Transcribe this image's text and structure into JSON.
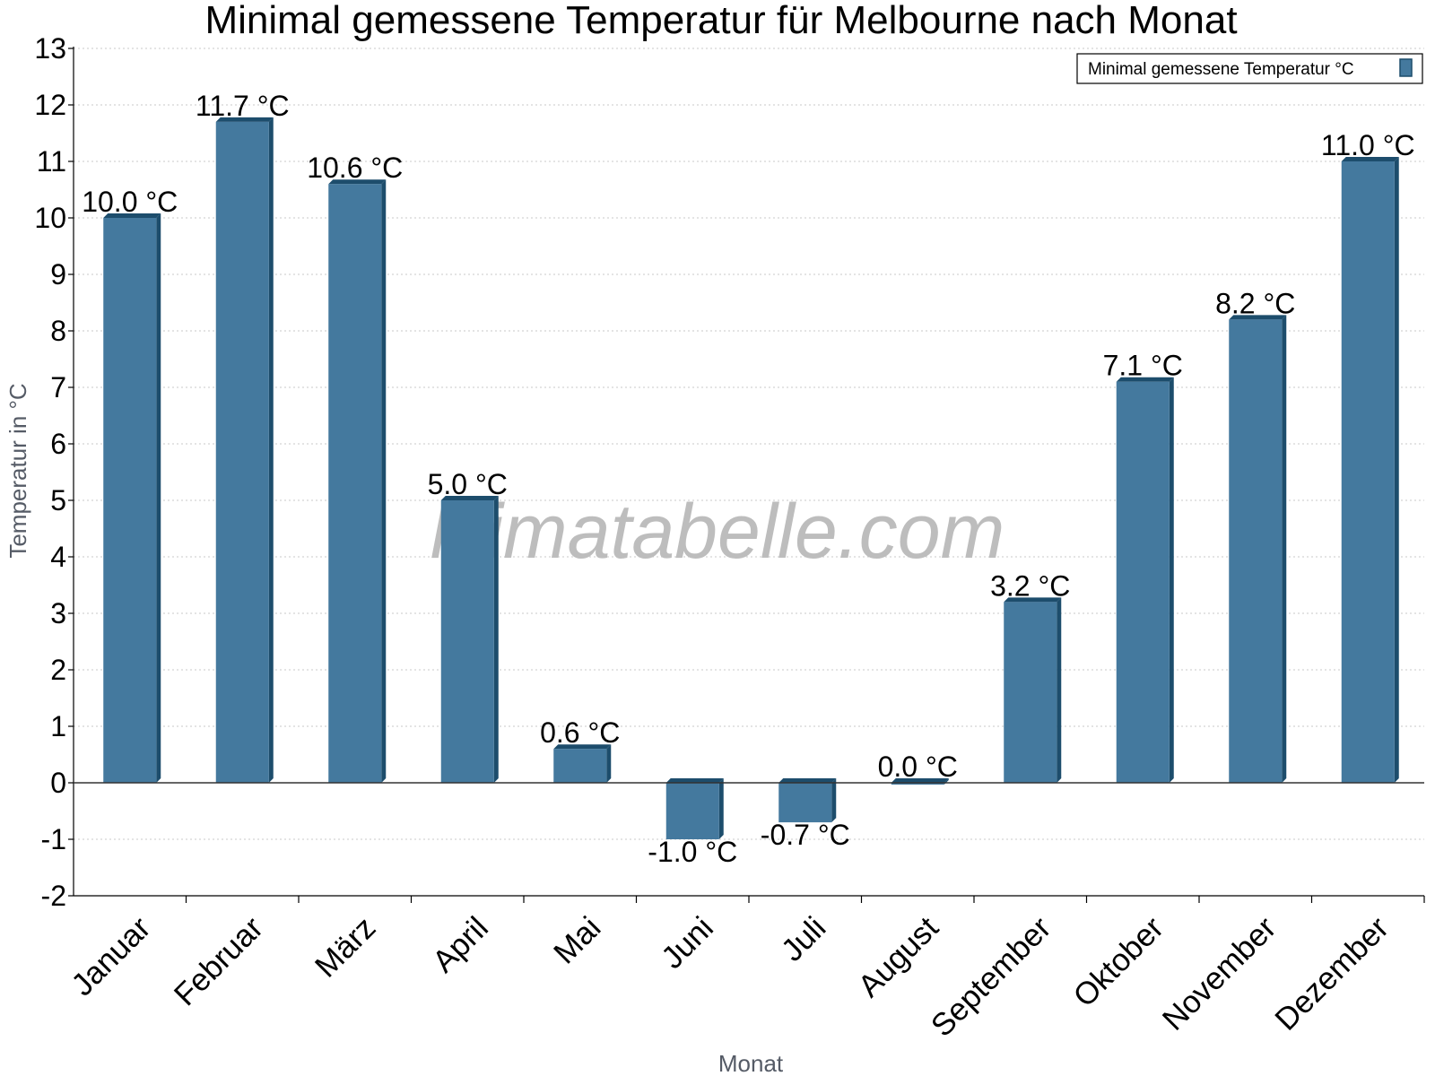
{
  "chart_data": {
    "type": "bar",
    "title": "Minimal gemessene Temperatur für Melbourne nach Monat",
    "xlabel": "Monat",
    "ylabel": "Temperatur in °C",
    "ylim": [
      -2,
      13
    ],
    "yticks": [
      -2,
      -1,
      0,
      1,
      2,
      3,
      4,
      5,
      6,
      7,
      8,
      9,
      10,
      11,
      12,
      13
    ],
    "grid": true,
    "legend_position": "top-right",
    "categories": [
      "Januar",
      "Februar",
      "März",
      "April",
      "Mai",
      "Juni",
      "Juli",
      "August",
      "September",
      "Oktober",
      "November",
      "Dezember"
    ],
    "series": [
      {
        "name": "Minimal gemessene Temperatur °C",
        "color": "#44799e",
        "values": [
          10.0,
          11.7,
          10.6,
          5.0,
          0.6,
          -1.0,
          -0.7,
          0.0,
          3.2,
          7.1,
          8.2,
          11.0
        ],
        "labels": [
          "10.0 °C",
          "11.7 °C",
          "10.6 °C",
          "5.0 °C",
          "0.6 °C",
          "-1.0 °C",
          "-0.7 °C",
          "0.0 °C",
          "3.2 °C",
          "7.1 °C",
          "8.2 °C",
          "11.0 °C"
        ]
      }
    ],
    "watermark": "klimatabelle.com"
  },
  "colors": {
    "bar": "#44799e",
    "bar_side": "#1d4d6c",
    "grid": "#c8c8c8",
    "axis": "#000000"
  }
}
